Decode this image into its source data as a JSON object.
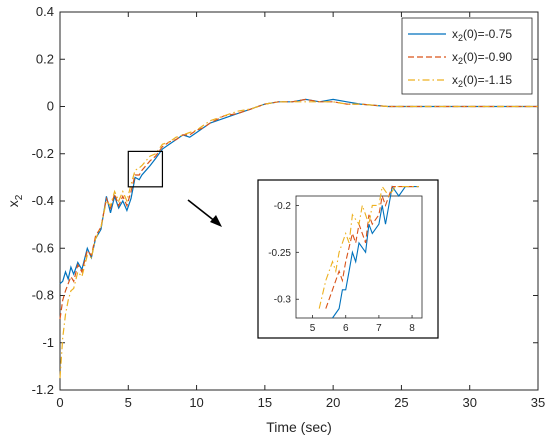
{
  "chart_data": {
    "type": "line",
    "xlabel": "Time (sec)",
    "ylabel": "x2",
    "xlim": [
      0,
      35
    ],
    "ylim": [
      -1.2,
      0.4
    ],
    "x_ticks": [
      0,
      5,
      10,
      15,
      20,
      25,
      30,
      35
    ],
    "y_ticks": [
      0.4,
      0.2,
      0,
      -0.2,
      -0.4,
      -0.6,
      -0.8,
      -1,
      -1.2
    ],
    "legend_position": "top-right",
    "series": [
      {
        "name": "x2(0)=-0.75",
        "color": "#0072BD",
        "style": "solid",
        "points": [
          [
            0,
            -0.75
          ],
          [
            0.2,
            -0.74
          ],
          [
            0.4,
            -0.7
          ],
          [
            0.6,
            -0.73
          ],
          [
            0.8,
            -0.68
          ],
          [
            1.0,
            -0.71
          ],
          [
            1.3,
            -0.66
          ],
          [
            1.6,
            -0.69
          ],
          [
            2.0,
            -0.6
          ],
          [
            2.3,
            -0.64
          ],
          [
            2.6,
            -0.56
          ],
          [
            3.0,
            -0.52
          ],
          [
            3.4,
            -0.38
          ],
          [
            3.7,
            -0.45
          ],
          [
            4.0,
            -0.38
          ],
          [
            4.3,
            -0.43
          ],
          [
            4.6,
            -0.4
          ],
          [
            4.9,
            -0.44
          ],
          [
            5.2,
            -0.39
          ],
          [
            5.5,
            -0.3
          ],
          [
            5.8,
            -0.31
          ],
          [
            6.0,
            -0.29
          ],
          [
            6.3,
            -0.27
          ],
          [
            6.6,
            -0.25
          ],
          [
            7.0,
            -0.22
          ],
          [
            7.5,
            -0.18
          ],
          [
            8.0,
            -0.16
          ],
          [
            8.5,
            -0.14
          ],
          [
            9.0,
            -0.12
          ],
          [
            9.5,
            -0.13
          ],
          [
            10.0,
            -0.11
          ],
          [
            10.5,
            -0.09
          ],
          [
            11.0,
            -0.07
          ],
          [
            12.0,
            -0.05
          ],
          [
            13.0,
            -0.03
          ],
          [
            14.0,
            -0.01
          ],
          [
            15.0,
            0.01
          ],
          [
            16.0,
            0.02
          ],
          [
            17.0,
            0.02
          ],
          [
            18.0,
            0.03
          ],
          [
            19.0,
            0.02
          ],
          [
            20.0,
            0.03
          ],
          [
            21.0,
            0.02
          ],
          [
            22.0,
            0.01
          ],
          [
            24.0,
            0.0
          ],
          [
            26.0,
            0.0
          ],
          [
            28.0,
            0.0
          ],
          [
            30.0,
            0.0
          ],
          [
            32.0,
            0.0
          ],
          [
            35.0,
            0.0
          ]
        ]
      },
      {
        "name": "x2(0)=-0.90",
        "color": "#D95319",
        "style": "dashed",
        "points": [
          [
            0,
            -0.9
          ],
          [
            0.2,
            -0.82
          ],
          [
            0.4,
            -0.78
          ],
          [
            0.6,
            -0.75
          ],
          [
            0.8,
            -0.72
          ],
          [
            1.0,
            -0.74
          ],
          [
            1.3,
            -0.67
          ],
          [
            1.6,
            -0.7
          ],
          [
            2.0,
            -0.61
          ],
          [
            2.3,
            -0.63
          ],
          [
            2.6,
            -0.55
          ],
          [
            3.0,
            -0.51
          ],
          [
            3.4,
            -0.39
          ],
          [
            3.7,
            -0.43
          ],
          [
            4.0,
            -0.37
          ],
          [
            4.3,
            -0.42
          ],
          [
            4.6,
            -0.38
          ],
          [
            4.9,
            -0.42
          ],
          [
            5.2,
            -0.36
          ],
          [
            5.5,
            -0.29
          ],
          [
            5.8,
            -0.29
          ],
          [
            6.0,
            -0.27
          ],
          [
            6.3,
            -0.25
          ],
          [
            6.6,
            -0.23
          ],
          [
            7.0,
            -0.21
          ],
          [
            7.5,
            -0.17
          ],
          [
            8.0,
            -0.15
          ],
          [
            8.5,
            -0.14
          ],
          [
            9.0,
            -0.12
          ],
          [
            9.5,
            -0.12
          ],
          [
            10.0,
            -0.1
          ],
          [
            10.5,
            -0.09
          ],
          [
            11.0,
            -0.07
          ],
          [
            12.0,
            -0.04
          ],
          [
            13.0,
            -0.03
          ],
          [
            14.0,
            -0.01
          ],
          [
            15.0,
            0.01
          ],
          [
            16.0,
            0.02
          ],
          [
            17.0,
            0.02
          ],
          [
            18.0,
            0.03
          ],
          [
            19.0,
            0.02
          ],
          [
            20.0,
            0.02
          ],
          [
            21.0,
            0.01
          ],
          [
            22.0,
            0.01
          ],
          [
            24.0,
            0.0
          ],
          [
            26.0,
            0.0
          ],
          [
            28.0,
            0.0
          ],
          [
            30.0,
            0.0
          ],
          [
            32.0,
            0.0
          ],
          [
            35.0,
            0.0
          ]
        ]
      },
      {
        "name": "x2(0)=-1.15",
        "color": "#EDB120",
        "style": "dashdot",
        "points": [
          [
            0,
            -1.15
          ],
          [
            0.2,
            -0.98
          ],
          [
            0.4,
            -0.88
          ],
          [
            0.6,
            -0.82
          ],
          [
            0.8,
            -0.78
          ],
          [
            1.0,
            -0.77
          ],
          [
            1.3,
            -0.7
          ],
          [
            1.6,
            -0.72
          ],
          [
            2.0,
            -0.63
          ],
          [
            2.3,
            -0.64
          ],
          [
            2.6,
            -0.56
          ],
          [
            3.0,
            -0.51
          ],
          [
            3.4,
            -0.4
          ],
          [
            3.7,
            -0.42
          ],
          [
            4.0,
            -0.36
          ],
          [
            4.3,
            -0.4
          ],
          [
            4.6,
            -0.36
          ],
          [
            4.9,
            -0.4
          ],
          [
            5.2,
            -0.33
          ],
          [
            5.5,
            -0.27
          ],
          [
            5.8,
            -0.26
          ],
          [
            6.0,
            -0.25
          ],
          [
            6.3,
            -0.23
          ],
          [
            6.6,
            -0.21
          ],
          [
            7.0,
            -0.2
          ],
          [
            7.5,
            -0.16
          ],
          [
            8.0,
            -0.15
          ],
          [
            8.5,
            -0.13
          ],
          [
            9.0,
            -0.12
          ],
          [
            9.5,
            -0.11
          ],
          [
            10.0,
            -0.1
          ],
          [
            10.5,
            -0.08
          ],
          [
            11.0,
            -0.06
          ],
          [
            12.0,
            -0.04
          ],
          [
            13.0,
            -0.02
          ],
          [
            14.0,
            -0.01
          ],
          [
            15.0,
            0.01
          ],
          [
            16.0,
            0.02
          ],
          [
            17.0,
            0.02
          ],
          [
            18.0,
            0.02
          ],
          [
            19.0,
            0.02
          ],
          [
            20.0,
            0.02
          ],
          [
            21.0,
            0.01
          ],
          [
            22.0,
            0.01
          ],
          [
            24.0,
            0.0
          ],
          [
            26.0,
            0.0
          ],
          [
            28.0,
            0.0
          ],
          [
            30.0,
            0.0
          ],
          [
            32.0,
            0.0
          ],
          [
            35.0,
            0.0
          ]
        ]
      }
    ],
    "zoom_box": {
      "xlim": [
        5,
        7.5
      ],
      "ylim": [
        -0.34,
        -0.19
      ]
    },
    "inset": {
      "xlim": [
        4.5,
        8.3
      ],
      "ylim": [
        -0.32,
        -0.19
      ],
      "x_ticks": [
        5,
        6,
        7,
        8
      ],
      "y_ticks": [
        -0.2,
        -0.25,
        -0.3
      ],
      "y_tick_labels": [
        "-0.2",
        "-0.25",
        "-0.3"
      ],
      "series": [
        {
          "name": "x2(0)=-0.75",
          "points": [
            [
              5.6,
              -0.32
            ],
            [
              5.8,
              -0.31
            ],
            [
              5.9,
              -0.29
            ],
            [
              6.0,
              -0.29
            ],
            [
              6.1,
              -0.27
            ],
            [
              6.2,
              -0.25
            ],
            [
              6.3,
              -0.26
            ],
            [
              6.4,
              -0.24
            ],
            [
              6.6,
              -0.25
            ],
            [
              6.7,
              -0.22
            ],
            [
              6.8,
              -0.23
            ],
            [
              7.0,
              -0.22
            ],
            [
              7.1,
              -0.2
            ],
            [
              7.2,
              -0.22
            ],
            [
              7.4,
              -0.18
            ],
            [
              7.6,
              -0.19
            ],
            [
              7.8,
              -0.18
            ],
            [
              8.2,
              -0.18
            ]
          ]
        },
        {
          "name": "x2(0)=-0.90",
          "points": [
            [
              5.4,
              -0.31
            ],
            [
              5.6,
              -0.29
            ],
            [
              5.8,
              -0.27
            ],
            [
              5.9,
              -0.28
            ],
            [
              6.0,
              -0.26
            ],
            [
              6.2,
              -0.23
            ],
            [
              6.3,
              -0.24
            ],
            [
              6.4,
              -0.22
            ],
            [
              6.6,
              -0.24
            ],
            [
              6.7,
              -0.21
            ],
            [
              6.8,
              -0.22
            ],
            [
              7.0,
              -0.21
            ],
            [
              7.1,
              -0.19
            ],
            [
              7.2,
              -0.2
            ],
            [
              7.4,
              -0.18
            ],
            [
              7.8,
              -0.18
            ],
            [
              8.2,
              -0.18
            ]
          ]
        },
        {
          "name": "x2(0)=-1.15",
          "points": [
            [
              5.2,
              -0.31
            ],
            [
              5.4,
              -0.28
            ],
            [
              5.6,
              -0.26
            ],
            [
              5.7,
              -0.27
            ],
            [
              5.8,
              -0.25
            ],
            [
              6.0,
              -0.23
            ],
            [
              6.1,
              -0.24
            ],
            [
              6.2,
              -0.21
            ],
            [
              6.4,
              -0.22
            ],
            [
              6.5,
              -0.2
            ],
            [
              6.7,
              -0.22
            ],
            [
              6.8,
              -0.2
            ],
            [
              7.0,
              -0.2
            ],
            [
              7.1,
              -0.18
            ],
            [
              7.3,
              -0.19
            ],
            [
              7.5,
              -0.18
            ],
            [
              8.2,
              -0.18
            ]
          ]
        }
      ]
    }
  }
}
